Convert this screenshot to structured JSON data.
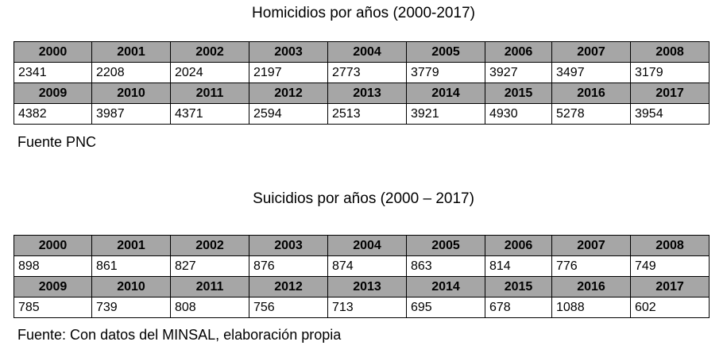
{
  "homicidios": {
    "title": "Homicidios por años (2000-2017)",
    "rows": [
      {
        "years": [
          "2000",
          "2001",
          "2002",
          "2003",
          "2004",
          "2005",
          "2006",
          "2007",
          "2008"
        ],
        "values": [
          "2341",
          "2208",
          "2024",
          "2197",
          "2773",
          "3779",
          "3927",
          "3497",
          "3179"
        ]
      },
      {
        "years": [
          "2009",
          "2010",
          "2011",
          "2012",
          "2013",
          "2014",
          "2015",
          "2016",
          "2017"
        ],
        "values": [
          "4382",
          "3987",
          "4371",
          "2594",
          "2513",
          "3921",
          "4930",
          "5278",
          "3954"
        ]
      }
    ],
    "source": "Fuente PNC"
  },
  "suicidios": {
    "title": "Suicidios por años (2000 – 2017)",
    "rows": [
      {
        "years": [
          "2000",
          "2001",
          "2002",
          "2003",
          "2004",
          "2005",
          "2006",
          "2007",
          "2008"
        ],
        "values": [
          "898",
          "861",
          "827",
          "876",
          "874",
          "863",
          "814",
          "776",
          "749"
        ]
      },
      {
        "years": [
          "2009",
          "2010",
          "2011",
          "2012",
          "2013",
          "2014",
          "2015",
          "2016",
          "2017"
        ],
        "values": [
          "785",
          "739",
          "808",
          "756",
          "713",
          "695",
          "678",
          "1088",
          "602"
        ]
      }
    ],
    "source": "Fuente: Con datos del MINSAL, elaboración propia"
  },
  "colors": {
    "header_fill": "#a6a6a6",
    "border": "#000000",
    "text": "#000000"
  }
}
